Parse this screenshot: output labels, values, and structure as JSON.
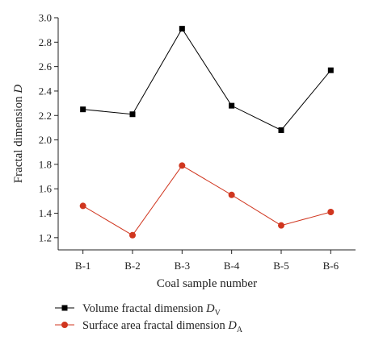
{
  "chart_data": {
    "type": "line",
    "categories": [
      "B-1",
      "B-2",
      "B-3",
      "B-4",
      "B-5",
      "B-6"
    ],
    "xlabel": "Coal sample number",
    "ylabel": "Fractal dimension",
    "ylabel_symbol": "D",
    "ylim": [
      1.1,
      3.0
    ],
    "yticks": [
      "1.2",
      "1.4",
      "1.6",
      "1.8",
      "2.0",
      "2.2",
      "2.4",
      "2.6",
      "2.8",
      "3.0"
    ],
    "grid": false,
    "legend_position": "bottom",
    "series": [
      {
        "name": "Volume fractal dimension",
        "symbol": "D",
        "subscript": "V",
        "marker": "square",
        "color": "#000000",
        "values": [
          2.25,
          2.21,
          2.91,
          2.28,
          2.08,
          2.57
        ]
      },
      {
        "name": "Surface area fractal dimension",
        "symbol": "D",
        "subscript": "A",
        "marker": "circle",
        "color": "#d0361f",
        "values": [
          1.46,
          1.22,
          1.79,
          1.55,
          1.3,
          1.41
        ]
      }
    ]
  }
}
